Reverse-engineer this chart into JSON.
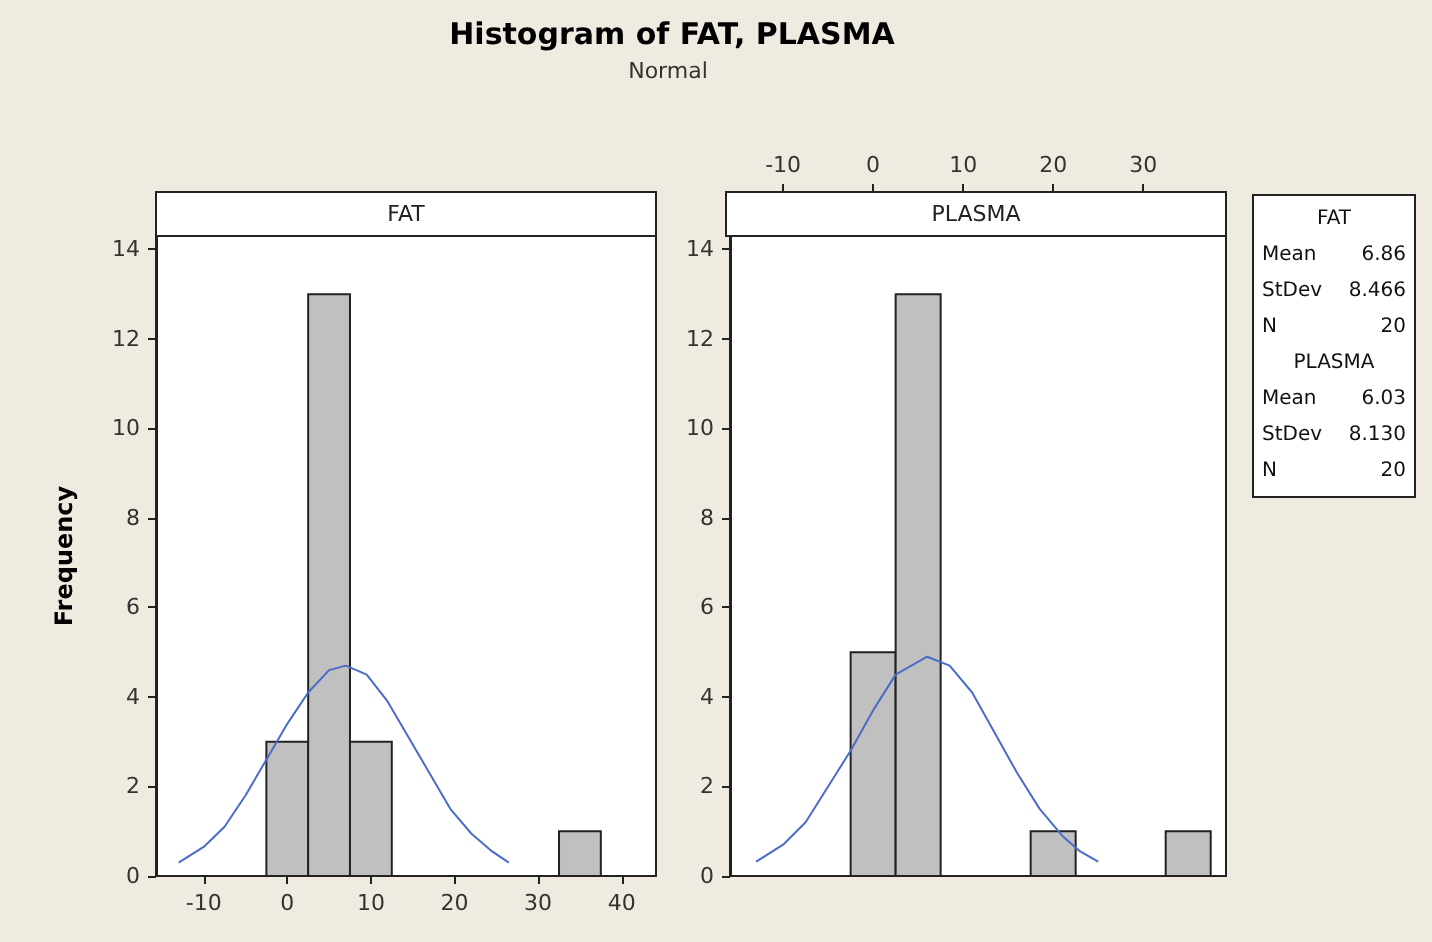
{
  "chart_data": [
    {
      "type": "histogram",
      "title": "Histogram of FAT, PLASMA",
      "subtitle": "Normal",
      "ylabel": "Frequency",
      "xlim": [
        -15.7,
        44.1
      ],
      "xticks": [
        -10,
        0,
        10,
        20,
        30,
        40
      ],
      "ylim": [
        0,
        14.3
      ],
      "yticks": [
        0,
        2,
        4,
        6,
        8,
        10,
        12,
        14
      ],
      "grid": false,
      "series": [
        {
          "type": "histogram",
          "name": "FAT",
          "color": "#c0c0c0",
          "bins": [
            -2.5,
            2.5,
            7.5,
            12.5,
            17.5,
            22.5,
            27.5,
            32.5,
            37.5,
            42.5
          ],
          "values": [
            3,
            13,
            3,
            0,
            0,
            0,
            0,
            1,
            0
          ]
        },
        {
          "type": "line",
          "color": "#4a6cc8",
          "x": [
            -13,
            -10,
            -7.5,
            -5,
            -2.5,
            0,
            2.5,
            5,
            7,
            9.5,
            12,
            14.5,
            17,
            19.5,
            22,
            24.5,
            26.5
          ],
          "values": [
            0.3,
            0.65,
            1.1,
            1.8,
            2.6,
            3.4,
            4.1,
            4.6,
            4.7,
            4.5,
            3.9,
            3.1,
            2.3,
            1.5,
            0.95,
            0.55,
            0.3
          ]
        }
      ]
    },
    {
      "type": "histogram",
      "xlim": [
        -15.9,
        39.2
      ],
      "xticks": [
        -10,
        0,
        10,
        20,
        30
      ],
      "ylim": [
        0,
        14.3
      ],
      "yticks": [
        0,
        2,
        4,
        6,
        8,
        10,
        12,
        14
      ],
      "grid": false,
      "series": [
        {
          "type": "histogram",
          "name": "PLASMA",
          "color": "#c0c0c0",
          "bins": [
            -2.5,
            2.5,
            7.5,
            12.5,
            17.5,
            22.5,
            27.5,
            32.5,
            37.5
          ],
          "values": [
            5,
            13,
            0,
            0,
            1,
            0,
            0,
            1
          ]
        },
        {
          "type": "line",
          "color": "#4a6cc8",
          "x": [
            -13,
            -10,
            -7.5,
            -5,
            -2.5,
            0,
            2.5,
            6,
            8.5,
            11,
            13.5,
            16,
            18.5,
            21,
            23,
            25
          ],
          "values": [
            0.32,
            0.7,
            1.2,
            2.0,
            2.8,
            3.7,
            4.5,
            4.9,
            4.7,
            4.1,
            3.2,
            2.3,
            1.5,
            0.9,
            0.55,
            0.32
          ]
        }
      ]
    },
    {
      "type": "other",
      "annotations": [
        "FAT",
        "Mean 6.86",
        "StDev 8.466",
        "N 20",
        "PLASMA",
        "Mean 6.03",
        "StDev 8.130",
        "N 20"
      ]
    }
  ]
}
